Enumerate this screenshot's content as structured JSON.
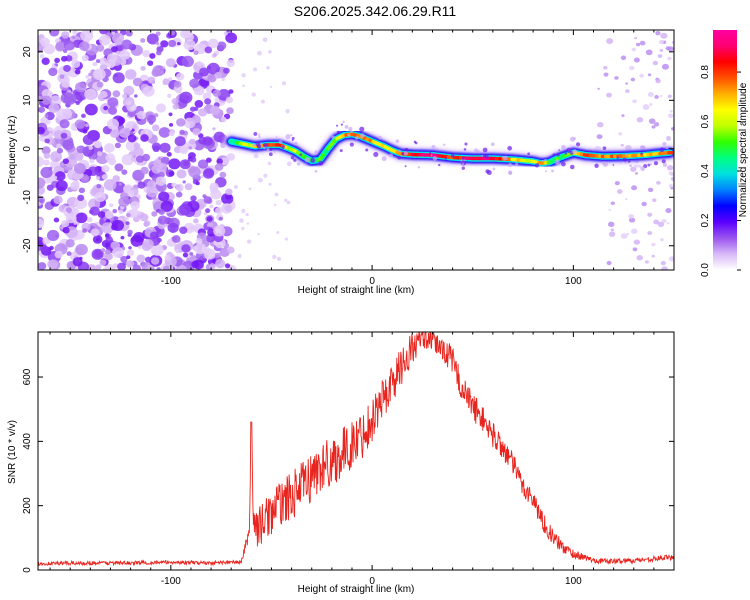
{
  "title": "S206.2025.342.06.29.R11",
  "chart_data": [
    {
      "type": "heatmap",
      "name": "spectrogram",
      "xlabel": "Height of straight line (km)",
      "ylabel": "Frequency (Hz)",
      "xlim": [
        -166,
        150
      ],
      "ylim": [
        -25,
        24.5
      ],
      "x_ticks": [
        -100,
        0,
        100
      ],
      "x_tick_labels": [
        "-100",
        "0",
        "100"
      ],
      "y_ticks": [
        -20,
        -10,
        0,
        10,
        20
      ],
      "y_tick_labels": [
        "-20",
        "-10",
        "0",
        "10",
        "20"
      ],
      "noise_region_x": [
        -166,
        -70
      ],
      "sparse_region_x": [
        110,
        150
      ],
      "ridge": {
        "x": [
          -70,
          -64,
          -58,
          -52,
          -46,
          -42,
          -38,
          -34,
          -30,
          -26,
          -22,
          -18,
          -14,
          -10,
          -6,
          -2,
          2,
          6,
          10,
          14,
          20,
          30,
          40,
          50,
          60,
          70,
          80,
          84,
          88,
          92,
          96,
          100,
          106,
          115,
          125,
          135,
          142,
          148
        ],
        "freq_hz": [
          1.5,
          1,
          0.5,
          0.8,
          0.8,
          0.2,
          -0.5,
          -1.6,
          -2.5,
          -2.3,
          0,
          2,
          2.8,
          3,
          2.6,
          1.9,
          1.2,
          0.5,
          -0.3,
          -1,
          -1.2,
          -1.3,
          -1.8,
          -2,
          -2,
          -2.2,
          -2.6,
          -3,
          -2.8,
          -2,
          -1.4,
          -0.8,
          -1.3,
          -1.6,
          -1.5,
          -1.3,
          -1,
          -0.8
        ],
        "amplitude": [
          0.45,
          0.6,
          0.7,
          0.85,
          0.8,
          0.6,
          0.65,
          0.55,
          0.5,
          0.55,
          0.5,
          0.6,
          0.75,
          0.85,
          0.8,
          0.75,
          0.7,
          0.65,
          0.7,
          0.75,
          0.9,
          0.95,
          0.8,
          0.95,
          0.9,
          0.7,
          0.6,
          0.75,
          0.55,
          0.5,
          0.55,
          0.6,
          0.8,
          0.75,
          0.8,
          0.7,
          0.75,
          0.8
        ]
      }
    },
    {
      "type": "line",
      "name": "snr",
      "xlabel": "Height of straight line (km)",
      "ylabel": "SNR (10 * v/v)",
      "xlim": [
        -166,
        150
      ],
      "ylim": [
        0,
        740
      ],
      "x_ticks": [
        -100,
        0,
        100
      ],
      "x_tick_labels": [
        "-100",
        "0",
        "100"
      ],
      "y_ticks": [
        0,
        200,
        400,
        600
      ],
      "y_tick_labels": [
        "0",
        "200",
        "400",
        "600"
      ],
      "series": [
        {
          "name": "SNR",
          "color": "#e8241e",
          "x": [
            -166,
            -140,
            -120,
            -100,
            -80,
            -65,
            -61,
            -60,
            -59,
            -57,
            -54,
            -50,
            -45,
            -40,
            -35,
            -30,
            -25,
            -20,
            -15,
            -10,
            -5,
            0,
            5,
            10,
            15,
            20,
            25,
            30,
            35,
            40,
            45,
            50,
            55,
            60,
            65,
            70,
            75,
            80,
            85,
            90,
            95,
            100,
            105,
            110,
            115,
            120,
            130,
            140,
            150
          ],
          "y": [
            20,
            22,
            22,
            24,
            22,
            25,
            120,
            460,
            150,
            130,
            150,
            180,
            210,
            230,
            260,
            290,
            320,
            340,
            360,
            390,
            420,
            470,
            530,
            580,
            640,
            690,
            720,
            710,
            690,
            650,
            560,
            510,
            470,
            420,
            380,
            330,
            260,
            220,
            150,
            100,
            70,
            50,
            40,
            30,
            28,
            27,
            30,
            35,
            40
          ],
          "noise_amp": [
            6,
            6,
            6,
            6,
            6,
            6,
            25,
            40,
            55,
            60,
            65,
            70,
            70,
            75,
            75,
            80,
            80,
            80,
            80,
            75,
            75,
            70,
            70,
            65,
            60,
            55,
            30,
            30,
            40,
            45,
            45,
            45,
            40,
            40,
            40,
            35,
            35,
            30,
            30,
            25,
            20,
            15,
            10,
            8,
            8,
            8,
            8,
            8,
            8
          ]
        }
      ]
    }
  ],
  "colorbar": {
    "label": "Normalized spectral amplitude",
    "ticks": [
      0.0,
      0.2,
      0.4,
      0.6,
      0.8
    ],
    "tick_labels": [
      "0.0",
      "0.2",
      "0.4",
      "0.6",
      "0.8"
    ],
    "range": [
      0,
      0.97
    ],
    "colors": [
      "#ffffff",
      "#d8b8f8",
      "#9a55ee",
      "#5a00ff",
      "#0000ff",
      "#0080ff",
      "#00e0e0",
      "#00ff80",
      "#30ff00",
      "#c0ff00",
      "#ffff00",
      "#ffb000",
      "#ff5000",
      "#ff0000",
      "#ff0070",
      "#ff00a0"
    ]
  }
}
